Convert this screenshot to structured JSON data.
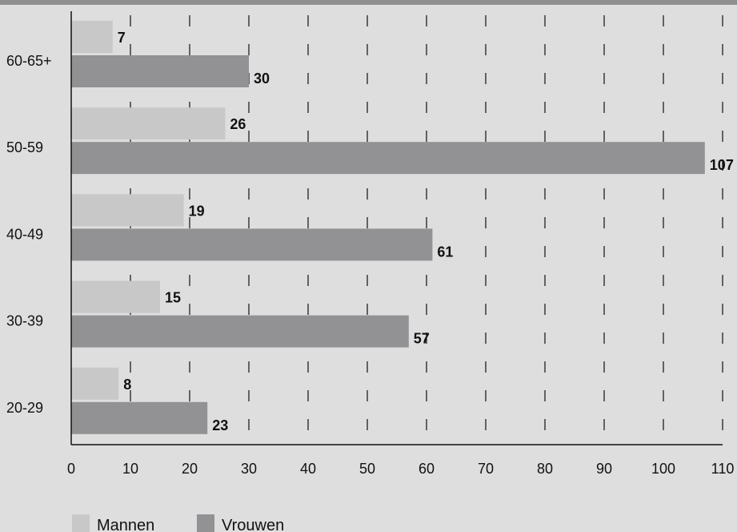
{
  "chart_data": {
    "type": "bar",
    "orientation": "horizontal",
    "categories": [
      "60-65+",
      "50-59",
      "40-49",
      "30-39",
      "20-29"
    ],
    "series": [
      {
        "name": "Mannen",
        "color": "#c8c8c8",
        "values": [
          7,
          26,
          19,
          15,
          8
        ]
      },
      {
        "name": "Vrouwen",
        "color": "#929295",
        "values": [
          30,
          107,
          61,
          57,
          23
        ]
      }
    ],
    "xlim": [
      0,
      110
    ],
    "xticks": [
      0,
      10,
      20,
      30,
      40,
      50,
      60,
      70,
      80,
      90,
      100,
      110
    ],
    "grid": "vertical dashed",
    "legend_position": "bottom-left",
    "title": "",
    "xlabel": "",
    "ylabel": ""
  }
}
